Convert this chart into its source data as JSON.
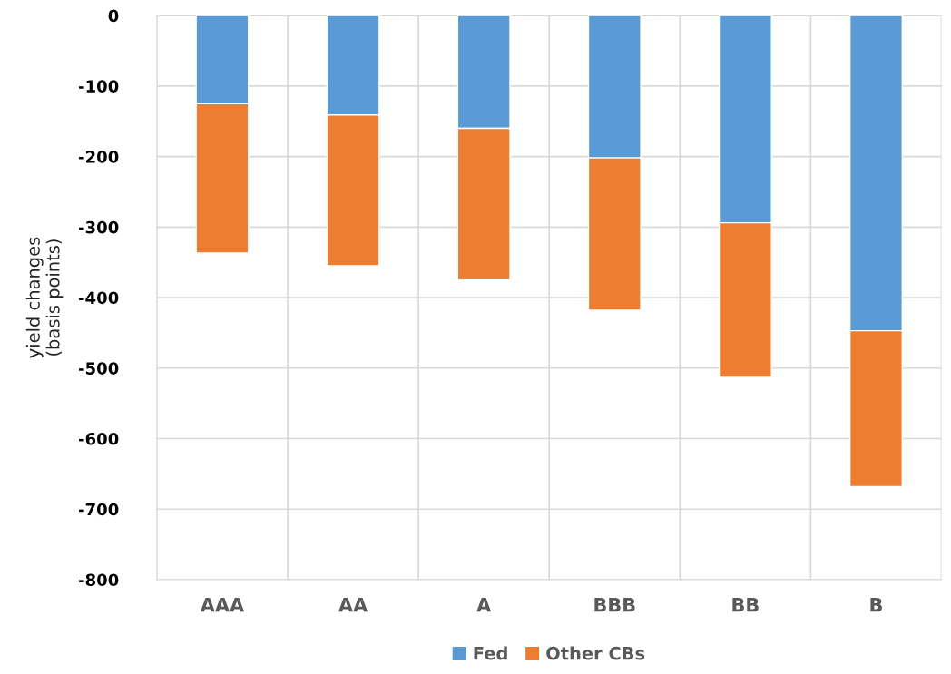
{
  "chart_data": {
    "type": "bar",
    "stacked": true,
    "ylabel": "yield changes\n(basis points)",
    "categories": [
      "AAA",
      "AA",
      "A",
      "BBB",
      "BB",
      "B"
    ],
    "series": [
      {
        "name": "Fed",
        "color": "#5b9bd5",
        "values": [
          -125,
          -141,
          -160,
          -202,
          -294,
          -447
        ]
      },
      {
        "name": "Other CBs",
        "color": "#ed7d31",
        "values": [
          -212,
          -214,
          -215,
          -216,
          -219,
          -221
        ]
      }
    ],
    "ylim": [
      -800,
      0
    ],
    "yticks": [
      0,
      -100,
      -200,
      -300,
      -400,
      -500,
      -600,
      -700,
      -800
    ],
    "grid": true,
    "legend": "bottom"
  }
}
